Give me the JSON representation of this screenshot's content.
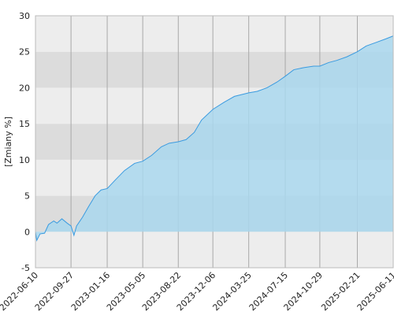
{
  "chart_data": {
    "type": "area",
    "y_label": "[Zmiany %]",
    "x": [
      "2022-06-10",
      "2022-06-14",
      "2022-06-24",
      "2022-07-08",
      "2022-07-20",
      "2022-08-05",
      "2022-08-15",
      "2022-08-30",
      "2022-09-15",
      "2022-09-27",
      "2022-10-06",
      "2022-10-14",
      "2022-11-01",
      "2022-11-20",
      "2022-12-10",
      "2022-12-28",
      "2023-01-16",
      "2023-02-10",
      "2023-03-10",
      "2023-04-10",
      "2023-05-05",
      "2023-06-01",
      "2023-07-01",
      "2023-07-25",
      "2023-08-22",
      "2023-09-15",
      "2023-10-10",
      "2023-11-01",
      "2023-12-06",
      "2024-01-10",
      "2024-02-10",
      "2024-03-25",
      "2024-04-20",
      "2024-05-20",
      "2024-06-20",
      "2024-07-15",
      "2024-08-10",
      "2024-09-10",
      "2024-10-10",
      "2024-10-29",
      "2024-11-25",
      "2024-12-20",
      "2025-01-20",
      "2025-02-21",
      "2025-03-20",
      "2025-04-20",
      "2025-05-20",
      "2025-06-11"
    ],
    "values": [
      0,
      -1.2,
      -0.3,
      -0.2,
      1.0,
      1.5,
      1.2,
      1.8,
      1.2,
      0.8,
      -0.5,
      0.8,
      2.0,
      3.5,
      5.0,
      5.8,
      6.0,
      7.2,
      8.5,
      9.5,
      9.8,
      10.6,
      11.8,
      12.3,
      12.5,
      12.8,
      13.8,
      15.5,
      17.0,
      18.0,
      18.8,
      19.3,
      19.5,
      20.0,
      20.8,
      21.6,
      22.5,
      22.8,
      23.0,
      23.0,
      23.5,
      23.8,
      24.3,
      25.0,
      25.8,
      26.3,
      26.8,
      27.2
    ],
    "color": "#3a9be0",
    "fill": "#a9d7ed",
    "xlim": [
      "2022-06-10",
      "2025-06-11"
    ],
    "xticks": [
      "2022-06-10",
      "2022-09-27",
      "2023-01-16",
      "2023-05-05",
      "2023-08-22",
      "2023-12-06",
      "2024-03-25",
      "2024-07-15",
      "2024-10-29",
      "2025-02-21",
      "2025-06-11"
    ],
    "ylim": [
      -5,
      30
    ],
    "yticks": [
      -5,
      0,
      5,
      10,
      15,
      20,
      25,
      30
    ],
    "grid": true
  }
}
